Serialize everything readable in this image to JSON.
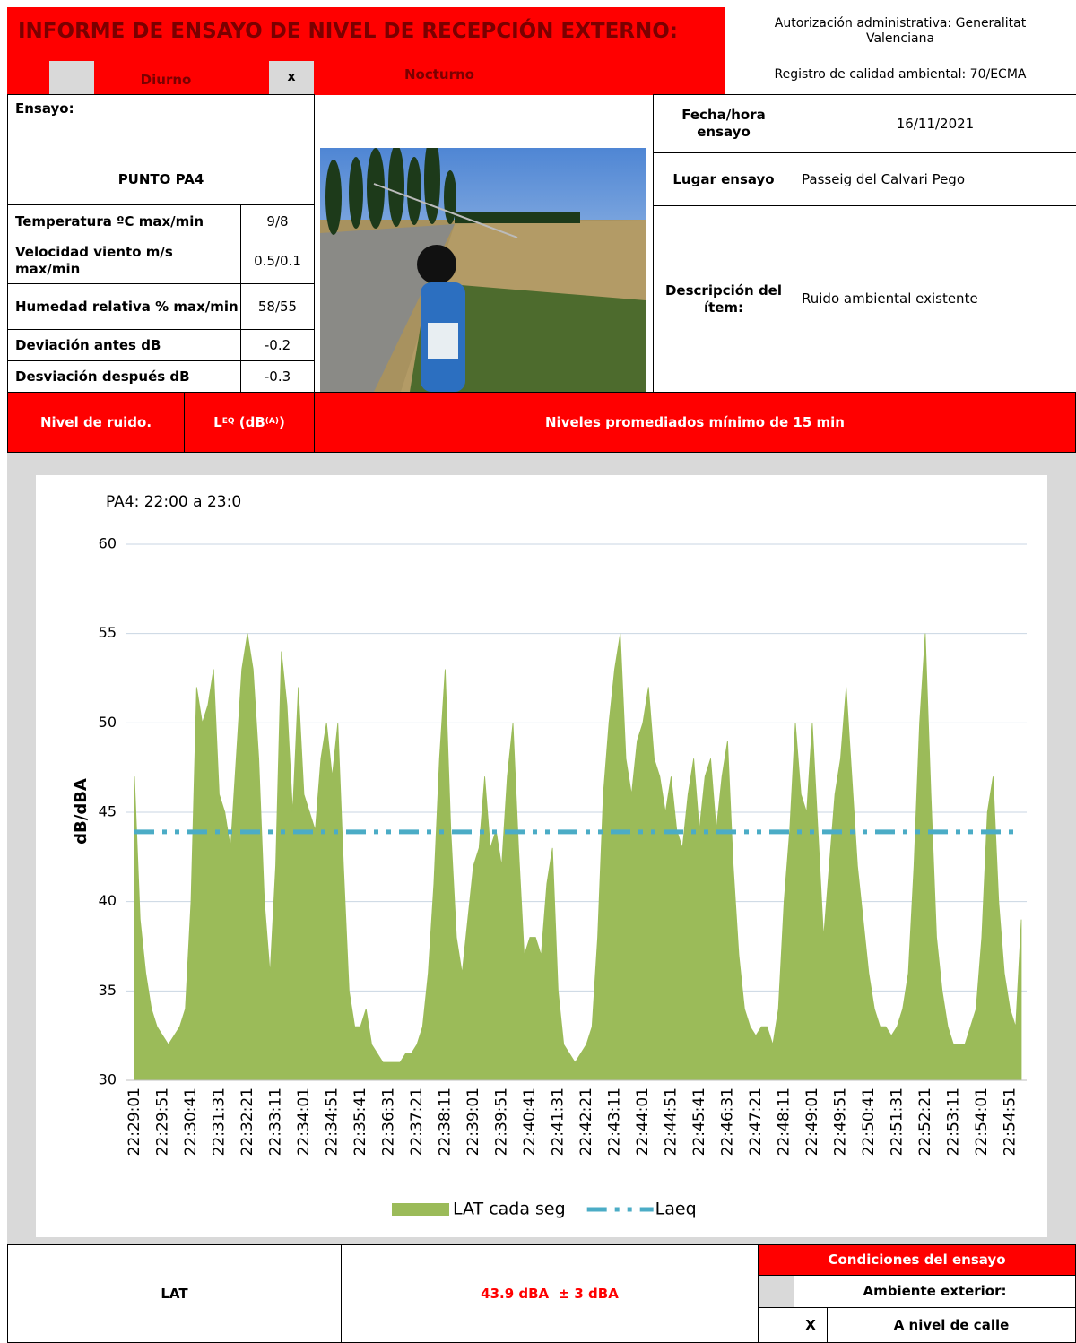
{
  "header": {
    "title": "INFORME DE ENSAYO DE NIVEL DE RECEPCIÓN EXTERNO:",
    "authorization": "Autorización administrativa: Generalitat Valenciana",
    "registry": "Registro de calidad ambiental:  70/ECMA",
    "diurno": "Diurno",
    "nocturno": "Nocturno",
    "nocturno_mark": "x"
  },
  "test": {
    "label": "Ensayo:",
    "point": "PUNTO PA4"
  },
  "conditions": {
    "rows": [
      [
        "Temperatura ºC max/min",
        "9/8"
      ],
      [
        "Velocidad viento  m/s max/min",
        "0.5/0.1"
      ],
      [
        "Humedad relativa  % max/min",
        "58/55"
      ],
      [
        "Deviación antes dB",
        "-0.2"
      ],
      [
        "Desviación después dB",
        "-0.3"
      ]
    ]
  },
  "info": {
    "rows": [
      [
        "Fecha/hora ensayo",
        "16/11/2021"
      ],
      [
        "Lugar ensayo",
        "Passeig del Calvari Pego"
      ],
      [
        "Descripción del ítem:",
        "Ruido ambiental existente"
      ]
    ]
  },
  "noise_bar": {
    "label": "Nivel de ruido.",
    "leq": {
      "main": "L",
      "sub": "EQ",
      "unit_open": " (dB",
      "unit_sub": "(A)",
      "unit_close": ")"
    },
    "note": "Niveles promediados mínimo de 15 min"
  },
  "chart_data": {
    "type": "area",
    "title": "PA4: 22:00 a 23:0",
    "ylabel": "dB/dBA",
    "categories": [
      "22:29:01",
      null,
      null,
      null,
      null,
      "22:29:51",
      null,
      null,
      null,
      null,
      "22:30:41",
      null,
      null,
      null,
      null,
      "22:31:31",
      null,
      null,
      null,
      null,
      "22:32:21",
      null,
      null,
      null,
      null,
      "22:33:11",
      null,
      null,
      null,
      null,
      "22:34:01",
      null,
      null,
      null,
      null,
      "22:34:51",
      null,
      null,
      null,
      null,
      "22:35:41",
      null,
      null,
      null,
      null,
      "22:36:31",
      null,
      null,
      null,
      null,
      "22:37:21",
      null,
      null,
      null,
      null,
      "22:38:11",
      null,
      null,
      null,
      null,
      "22:39:01",
      null,
      null,
      null,
      null,
      "22:39:51",
      null,
      null,
      null,
      null,
      "22:40:41",
      null,
      null,
      null,
      null,
      "22:41:31",
      null,
      null,
      null,
      null,
      "22:42:21",
      null,
      null,
      null,
      null,
      "22:43:11",
      null,
      null,
      null,
      null,
      "22:44:01",
      null,
      null,
      null,
      null,
      "22:44:51",
      null,
      null,
      null,
      null,
      "22:45:41",
      null,
      null,
      null,
      null,
      "22:46:31",
      null,
      null,
      null,
      null,
      "22:47:21",
      null,
      null,
      null,
      null,
      "22:48:11",
      null,
      null,
      null,
      null,
      "22:49:01",
      null,
      null,
      null,
      null,
      "22:49:51",
      null,
      null,
      null,
      null,
      "22:50:41",
      null,
      null,
      null,
      null,
      "22:51:31",
      null,
      null,
      null,
      null,
      "22:52:21",
      null,
      null,
      null,
      null,
      "22:53:11",
      null,
      null,
      null,
      null,
      "22:54:01",
      null,
      null,
      null,
      null,
      "22:54:51",
      null,
      null
    ],
    "series": [
      {
        "name": "LAT cada seg",
        "type": "area",
        "color": "#9bbb59",
        "values": [
          47,
          39,
          36,
          34,
          33,
          32.5,
          32,
          32.5,
          33,
          34,
          40,
          52,
          50,
          51,
          53,
          46,
          45,
          43,
          48,
          53,
          55,
          53,
          48,
          40,
          36,
          42,
          54,
          51,
          45,
          52,
          46,
          45,
          44,
          48,
          50,
          47,
          50,
          42,
          35,
          33,
          33,
          34,
          32,
          31.5,
          31,
          31,
          31,
          31,
          31.5,
          31.5,
          32,
          33,
          36,
          41,
          48,
          53,
          44,
          38,
          36,
          39,
          42,
          43,
          47,
          43,
          44,
          42,
          47,
          50,
          43,
          37,
          38,
          38,
          37,
          41,
          43,
          35,
          32,
          31.5,
          31,
          31.5,
          32,
          33,
          38,
          46,
          50,
          53,
          55,
          48,
          46,
          49,
          50,
          52,
          48,
          47,
          45,
          47,
          44,
          43,
          46,
          48,
          44,
          47,
          48,
          44,
          47,
          49,
          42,
          37,
          34,
          33,
          32.5,
          33,
          33,
          32,
          34,
          40,
          44,
          50,
          46,
          45,
          50,
          44,
          38,
          42,
          46,
          48,
          52,
          47,
          42,
          39,
          36,
          34,
          33,
          33,
          32.5,
          33,
          34,
          36,
          42,
          50,
          55,
          46,
          38,
          35,
          33,
          32,
          32,
          32,
          33,
          34,
          38,
          45,
          47,
          40,
          36,
          34,
          33,
          39
        ]
      },
      {
        "name": "Laeq",
        "type": "line",
        "color": "#4bacc6",
        "values": [
          43.9,
          43.9,
          43.9,
          43.9,
          43.9,
          43.9,
          43.9,
          43.9,
          43.9,
          43.9,
          43.9,
          43.9,
          43.9,
          43.9,
          43.9,
          43.9,
          43.9,
          43.9,
          43.9,
          43.9,
          43.9,
          43.9,
          43.9,
          43.9,
          43.9,
          43.9,
          43.9,
          43.9,
          43.9,
          43.9,
          43.9,
          43.9,
          43.9,
          43.9,
          43.9,
          43.9,
          43.9,
          43.9,
          43.9,
          43.9,
          43.9,
          43.9,
          43.9,
          43.9,
          43.9,
          43.9,
          43.9,
          43.9,
          43.9,
          43.9,
          43.9,
          43.9,
          43.9,
          43.9,
          43.9,
          43.9,
          43.9,
          43.9,
          43.9,
          43.9,
          43.9,
          43.9,
          43.9,
          43.9,
          43.9,
          43.9,
          43.9,
          43.9,
          43.9,
          43.9,
          43.9,
          43.9,
          43.9,
          43.9,
          43.9,
          43.9,
          43.9,
          43.9,
          43.9,
          43.9,
          43.9,
          43.9,
          43.9,
          43.9,
          43.9,
          43.9,
          43.9,
          43.9,
          43.9,
          43.9,
          43.9,
          43.9,
          43.9,
          43.9,
          43.9,
          43.9,
          43.9,
          43.9,
          43.9,
          43.9,
          43.9,
          43.9,
          43.9,
          43.9,
          43.9,
          43.9,
          43.9,
          43.9,
          43.9,
          43.9,
          43.9,
          43.9,
          43.9,
          43.9,
          43.9,
          43.9,
          43.9,
          43.9,
          43.9,
          43.9,
          43.9,
          43.9,
          43.9,
          43.9,
          43.9,
          43.9,
          43.9,
          43.9,
          43.9,
          43.9,
          43.9,
          43.9,
          43.9,
          43.9,
          43.9,
          43.9,
          43.9,
          43.9,
          43.9,
          43.9,
          43.9,
          43.9,
          43.9,
          43.9,
          43.9,
          43.9,
          43.9,
          43.9,
          43.9,
          43.9,
          43.9,
          43.9,
          43.9,
          43.9,
          43.9,
          43.9,
          43.9,
          43.9
        ]
      }
    ],
    "ylim": [
      30,
      60
    ],
    "yticks": [
      30,
      35,
      40,
      45,
      50,
      55,
      60
    ],
    "grid": true,
    "legend": "bottom"
  },
  "result": {
    "label": "LAT",
    "value": "43.9 dBA  ± 3 dBA"
  },
  "test_conditions": {
    "title": "Condiciones del ensayo",
    "environment": "Ambiente exterior:",
    "street_mark": "X",
    "street": "A nivel de calle"
  }
}
